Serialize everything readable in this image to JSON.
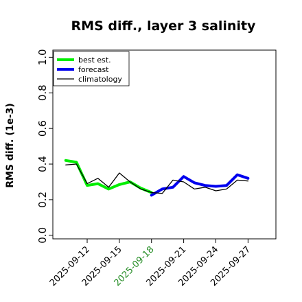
{
  "chart_data": {
    "type": "line",
    "title": "RMS diff., layer 3 salinity",
    "xlabel": "",
    "ylabel": "RMS diff. (1e-3)",
    "xlim": [
      -1.2,
      19.6
    ],
    "ylim": [
      -0.02,
      1.04
    ],
    "yticks": [
      0.0,
      0.2,
      0.4,
      0.6,
      0.8,
      1.0
    ],
    "ytick_labels": [
      "0.0",
      "0.2",
      "0.4",
      "0.6",
      "0.8",
      "1.0"
    ],
    "xticks": [
      2,
      5,
      8,
      11,
      14,
      17
    ],
    "xtick_labels": [
      "2025-09-12",
      "2025-09-15",
      "2025-09-18",
      "2025-09-21",
      "2025-09-24",
      "2025-09-27"
    ],
    "xtick_colors": [
      "#000000",
      "#000000",
      "#228B22",
      "#000000",
      "#000000",
      "#000000"
    ],
    "legend_position": "top-left",
    "grid": false,
    "series": [
      {
        "name": "best est.",
        "color": "#00ee00",
        "line_width": 4,
        "x": [
          0,
          1,
          2,
          3,
          4,
          5,
          6,
          7,
          8
        ],
        "y": [
          0.42,
          0.41,
          0.28,
          0.29,
          0.26,
          0.285,
          0.3,
          0.265,
          0.24
        ]
      },
      {
        "name": "forecast",
        "color": "#0000ee",
        "line_width": 4,
        "x": [
          8,
          9,
          10,
          11,
          12,
          13,
          14,
          15,
          16,
          17
        ],
        "y": [
          0.225,
          0.26,
          0.27,
          0.33,
          0.295,
          0.28,
          0.275,
          0.28,
          0.34,
          0.32
        ]
      },
      {
        "name": "climatology",
        "color": "#000000",
        "line_width": 1.3,
        "x": [
          0,
          1,
          2,
          3,
          4,
          5,
          6,
          7,
          8,
          9,
          10,
          11,
          12,
          13,
          14,
          15,
          16,
          17
        ],
        "y": [
          0.395,
          0.4,
          0.29,
          0.32,
          0.27,
          0.35,
          0.3,
          0.26,
          0.24,
          0.235,
          0.31,
          0.3,
          0.26,
          0.27,
          0.25,
          0.26,
          0.31,
          0.305
        ]
      }
    ]
  }
}
